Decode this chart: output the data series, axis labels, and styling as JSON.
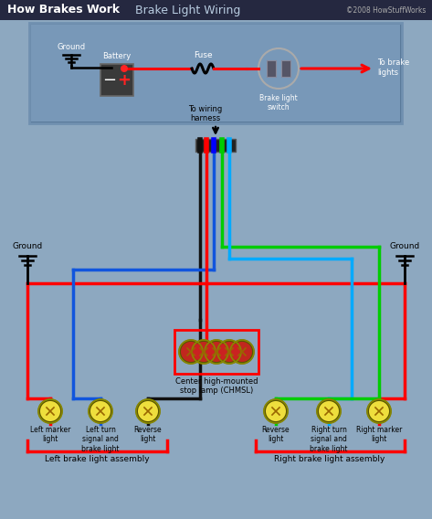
{
  "title_bold": "How Brakes Work",
  "title_sep": "  —  ",
  "title_normal": "Brake Light Wiring",
  "copyright": "©2008 HowStuffWorks",
  "header_bg": "#252840",
  "body_bg": "#8da8c0",
  "box_bg_outer": "#5a7a9a",
  "box_bg_inner": "#7898b8",
  "box_border": "#8ab0cc",
  "red": "#ff0000",
  "blue": "#0000ff",
  "dkblue": "#1155dd",
  "cyan": "#00aaff",
  "green": "#00cc00",
  "black": "#111111",
  "white": "#ffffff",
  "yellow_outer": "#7a6a00",
  "yellow_inner": "#ffee44",
  "dark_red": "#cc0000",
  "label_ground_l": "Ground",
  "label_ground_r": "Ground",
  "label_battery": "Battery",
  "label_fuse": "Fuse",
  "label_switch": "Brake light\nswitch",
  "label_to_brake": "To brake\nlights",
  "label_harness": "To wiring\nharness",
  "label_chmsl": "Center high-mounted\nstop lamp (CHMSL)",
  "label_left_marker": "Left marker\nlight",
  "label_left_turn": "Left turn\nsignal and\nbrake light",
  "label_reverse_l": "Reverse\nlight",
  "label_reverse_r": "Reverse\nlight",
  "label_right_turn": "Right turn\nsignal and\nbrake light",
  "label_right_marker": "Right marker\nlight",
  "label_left_assy": "Left brake light assembly",
  "label_right_assy": "Right brake light assembly"
}
